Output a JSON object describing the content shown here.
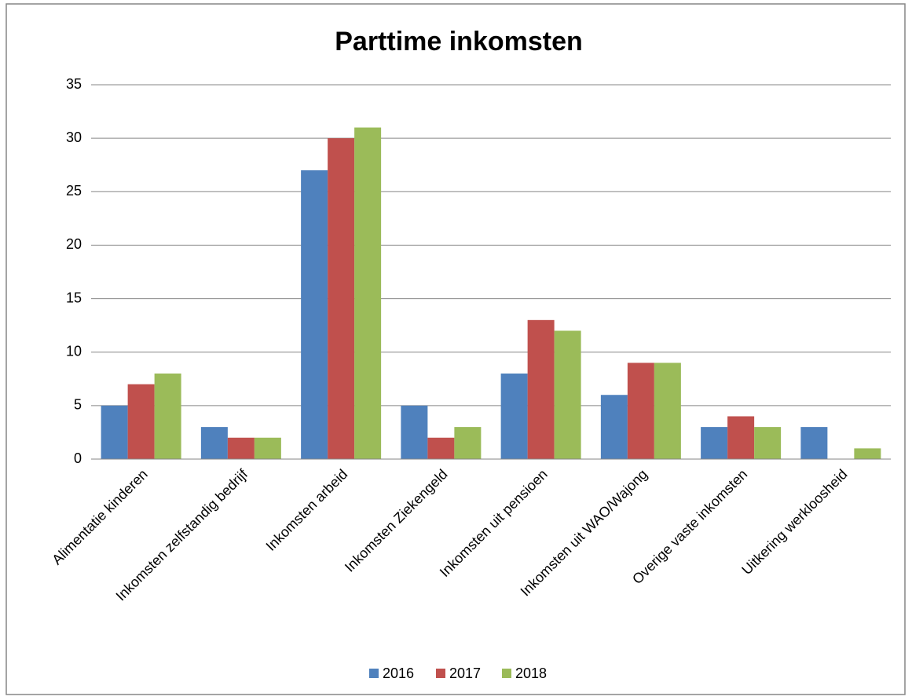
{
  "chart_data": {
    "type": "bar",
    "title": "Parttime inkomsten",
    "categories": [
      "Alimentatie kinderen",
      "Inkomsten zelfstandig bedrijf",
      "Inkomsten arbeid",
      "Inkomsten Ziekengeld",
      "Inkomsten uit pensioen",
      "Inkomsten uit WAO/Wajong",
      "Overige vaste inkomsten",
      "Uitkering werkloosheid"
    ],
    "series": [
      {
        "name": "2016",
        "color": "#4f81bd",
        "values": [
          5,
          3,
          27,
          5,
          8,
          6,
          3,
          3
        ]
      },
      {
        "name": "2017",
        "color": "#c0504d",
        "values": [
          7,
          2,
          30,
          2,
          13,
          9,
          4,
          0
        ]
      },
      {
        "name": "2018",
        "color": "#9bbb59",
        "values": [
          8,
          2,
          31,
          3,
          12,
          9,
          3,
          1
        ]
      }
    ],
    "ylim": [
      0,
      35
    ],
    "yticks": [
      0,
      5,
      10,
      15,
      20,
      25,
      30,
      35
    ],
    "grid": true,
    "legend": "bottom"
  }
}
